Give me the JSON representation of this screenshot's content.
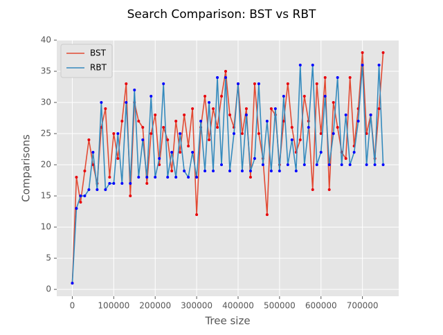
{
  "chart_data": {
    "type": "line",
    "title": "Search Comparison: BST vs RBT",
    "x_label": "Tree size",
    "y_label": "Comparisons",
    "x": [
      0,
      10000,
      20000,
      30000,
      40000,
      50000,
      60000,
      70000,
      80000,
      90000,
      100000,
      110000,
      120000,
      130000,
      140000,
      150000,
      160000,
      170000,
      180000,
      190000,
      200000,
      210000,
      220000,
      230000,
      240000,
      250000,
      260000,
      270000,
      280000,
      290000,
      300000,
      310000,
      320000,
      330000,
      340000,
      350000,
      360000,
      370000,
      380000,
      390000,
      400000,
      410000,
      420000,
      430000,
      440000,
      450000,
      460000,
      470000,
      480000,
      490000,
      500000,
      510000,
      520000,
      530000,
      540000,
      550000,
      560000,
      570000,
      580000,
      590000,
      600000,
      610000,
      620000,
      630000,
      640000,
      650000,
      660000,
      670000,
      680000,
      690000,
      700000,
      710000,
      720000,
      730000,
      740000,
      750000
    ],
    "series": [
      {
        "name": "BST",
        "color": "#e24a33",
        "marker_color": "#e8000b",
        "values": [
          1,
          18,
          14,
          19,
          24,
          20,
          17,
          26,
          29,
          18,
          25,
          21,
          27,
          33,
          15,
          30,
          27,
          26,
          17,
          25,
          28,
          20,
          26,
          24,
          19,
          27,
          22,
          28,
          23,
          29,
          12,
          26,
          31,
          24,
          29,
          26,
          31,
          35,
          28,
          26,
          33,
          25,
          29,
          18,
          33,
          25,
          21,
          12,
          29,
          28,
          20,
          27,
          33,
          26,
          22,
          24,
          31,
          27,
          16,
          33,
          25,
          34,
          16,
          30,
          26,
          22,
          21,
          34,
          23,
          29,
          38,
          25,
          28,
          21,
          29,
          38
        ]
      },
      {
        "name": "RBT",
        "color": "#348abd",
        "marker_color": "#0000ff",
        "values": [
          1,
          13,
          15,
          15,
          16,
          22,
          16,
          30,
          16,
          17,
          17,
          25,
          17,
          30,
          17,
          32,
          18,
          24,
          18,
          31,
          18,
          21,
          33,
          18,
          22,
          18,
          25,
          19,
          18,
          22,
          18,
          27,
          19,
          30,
          19,
          34,
          20,
          34,
          19,
          25,
          33,
          19,
          28,
          19,
          21,
          33,
          20,
          27,
          19,
          29,
          19,
          31,
          20,
          24,
          19,
          36,
          20,
          26,
          36,
          20,
          22,
          31,
          20,
          25,
          34,
          20,
          28,
          20,
          22,
          27,
          36,
          20,
          28,
          20,
          36,
          20
        ]
      }
    ],
    "xlim": [
      -37500,
      787500
    ],
    "ylim": [
      -1.1,
      40
    ],
    "xticks": [
      0,
      100000,
      200000,
      300000,
      400000,
      500000,
      600000,
      700000
    ],
    "yticks": [
      0,
      5,
      10,
      15,
      20,
      25,
      30,
      35,
      40
    ],
    "grid": true,
    "legend": "upper left"
  }
}
